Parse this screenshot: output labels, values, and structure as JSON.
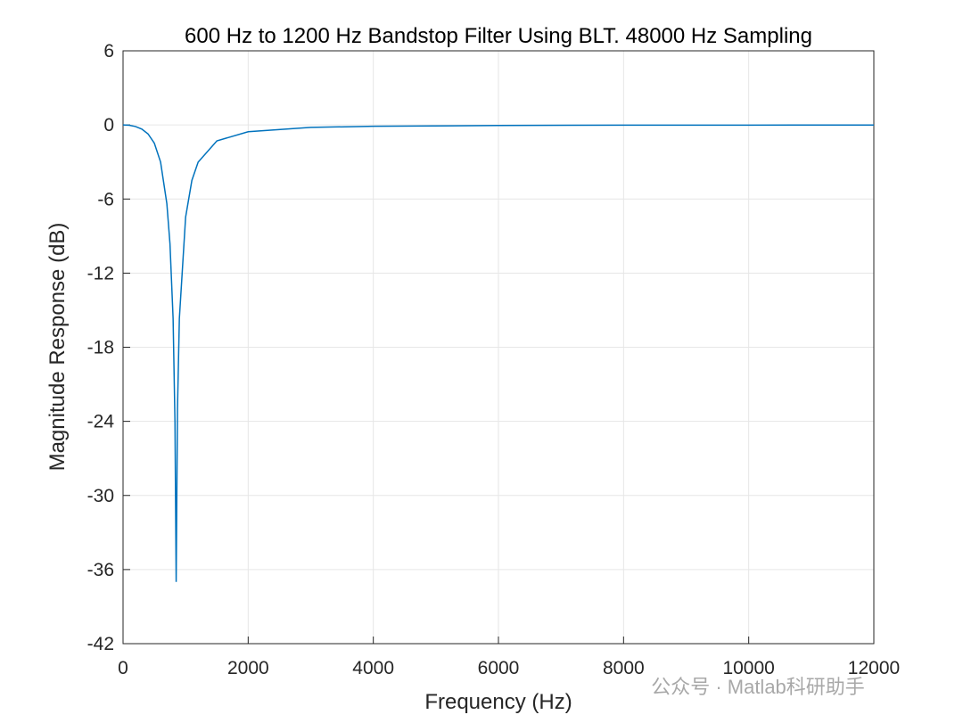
{
  "chart_data": {
    "type": "line",
    "title": "600 Hz to 1200 Hz Bandstop Filter Using BLT. 48000 Hz Sampling",
    "x_label": "Frequency (Hz)",
    "y_label": "Magnitude Response (dB)",
    "x": [
      0,
      100,
      200,
      300,
      400,
      500,
      600,
      700,
      750,
      800,
      830,
      849,
      870,
      900,
      1000,
      1100,
      1200,
      1500,
      2000,
      3000,
      4000,
      6000,
      8000,
      10000,
      12000
    ],
    "series": [
      {
        "name": "Magnitude",
        "color": "#0072bd",
        "values": [
          0,
          -0.03,
          -0.13,
          -0.34,
          -0.73,
          -1.48,
          -3.01,
          -6.37,
          -9.62,
          -15.68,
          -24.1,
          -37,
          -23.0,
          -15.68,
          -7.47,
          -4.49,
          -3.01,
          -1.29,
          -0.55,
          -0.2,
          -0.11,
          -0.045,
          -0.02,
          -0.015,
          -0.01
        ]
      }
    ],
    "xlim": [
      0,
      12000
    ],
    "xticks": [
      0,
      2000,
      4000,
      6000,
      8000,
      10000,
      12000
    ],
    "ylim": [
      -42,
      6
    ],
    "yticks": [
      -42,
      -36,
      -30,
      -24,
      -18,
      -12,
      -6,
      0,
      6
    ],
    "grid": true,
    "watermark": "公众号 · Matlab科研助手"
  }
}
